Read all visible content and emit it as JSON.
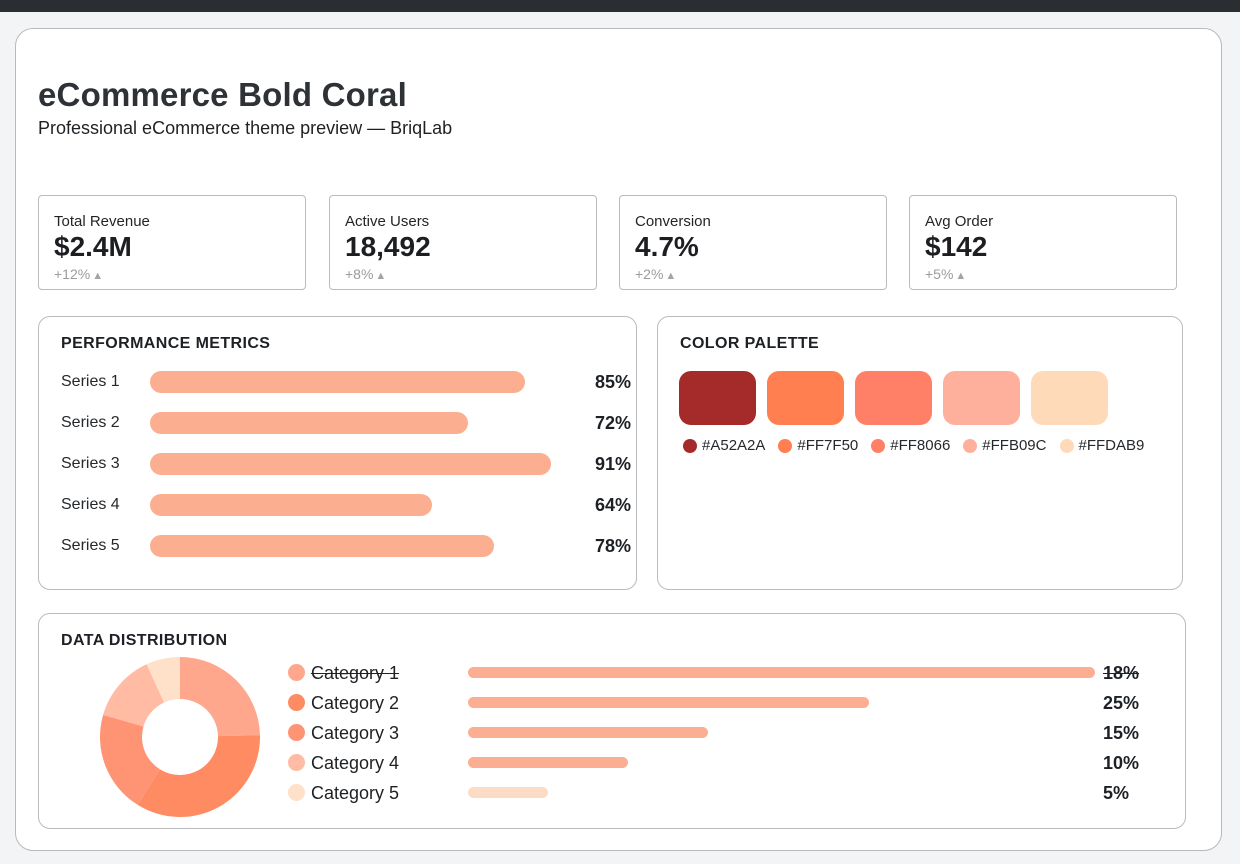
{
  "header": {
    "title": "eCommerce Bold Coral",
    "subtitle": "Professional eCommerce theme preview — BriqLab"
  },
  "kpis": [
    {
      "label": "Total Revenue",
      "value": "$2.4M",
      "change": "+12%",
      "trend_icon": "triangle-up-icon"
    },
    {
      "label": "Active Users",
      "value": "18,492",
      "change": "+8%",
      "trend_icon": "triangle-up-icon"
    },
    {
      "label": "Conversion",
      "value": "4.7%",
      "change": "+2%",
      "trend_icon": "triangle-up-icon"
    },
    {
      "label": "Avg Order",
      "value": "$142",
      "change": "+5%",
      "trend_icon": "triangle-up-icon"
    }
  ],
  "trend_glyph": "▲",
  "performance": {
    "title": "PERFORMANCE METRICS",
    "bar_color": "#FCAE90",
    "series": [
      {
        "label": "Series 1",
        "value": 85,
        "display": "85%"
      },
      {
        "label": "Series 2",
        "value": 72,
        "display": "72%"
      },
      {
        "label": "Series 3",
        "value": 91,
        "display": "91%"
      },
      {
        "label": "Series 4",
        "value": 64,
        "display": "64%"
      },
      {
        "label": "Series 5",
        "value": 78,
        "display": "78%"
      }
    ]
  },
  "palette": {
    "title": "COLOR PALETTE",
    "colors": [
      {
        "hex": "#A52A2A"
      },
      {
        "hex": "#FF7F50"
      },
      {
        "hex": "#FF8066"
      },
      {
        "hex": "#FFB09C"
      },
      {
        "hex": "#FFDAB9"
      }
    ]
  },
  "distribution": {
    "title": "DATA DISTRIBUTION",
    "chart_type": "donut",
    "categories": [
      {
        "label": "Category 1",
        "value": 18,
        "display": "18%",
        "struck": true,
        "color": "#FFA78C",
        "bar_color": "#FCAE92",
        "bar_fill": 1.0
      },
      {
        "label": "Category 2",
        "value": 25,
        "display": "25%",
        "struck": false,
        "color": "#FF8B62",
        "bar_color": "#FCAE92",
        "bar_fill": 0.64
      },
      {
        "label": "Category 3",
        "value": 15,
        "display": "15%",
        "struck": false,
        "color": "#FF9475",
        "bar_color": "#FCAE92",
        "bar_fill": 0.383
      },
      {
        "label": "Category 4",
        "value": 10,
        "display": "10%",
        "struck": false,
        "color": "#FFBBA3",
        "bar_color": "#FCAE92",
        "bar_fill": 0.255
      },
      {
        "label": "Category 5",
        "value": 5,
        "display": "5%",
        "struck": false,
        "color": "#FFE0C8",
        "bar_color": "#FDDCC6",
        "bar_fill": 0.128
      }
    ]
  }
}
